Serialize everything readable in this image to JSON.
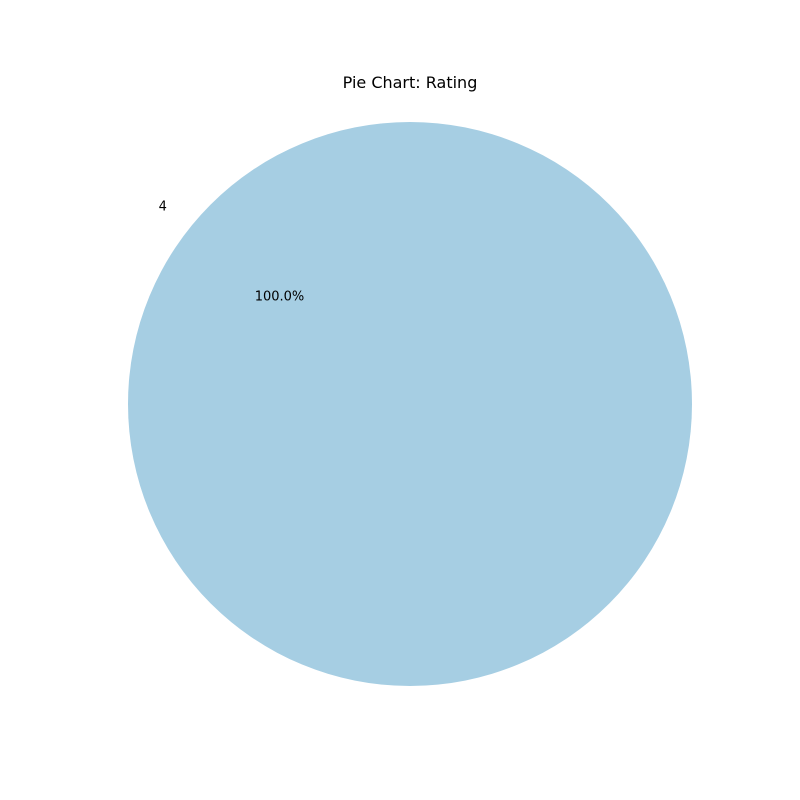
{
  "chart_data": {
    "type": "pie",
    "title": "Pie Chart: Rating",
    "slices": [
      {
        "label": "4",
        "value": 100.0,
        "percent_label": "100.0%",
        "color": "#a6cee3"
      }
    ]
  }
}
